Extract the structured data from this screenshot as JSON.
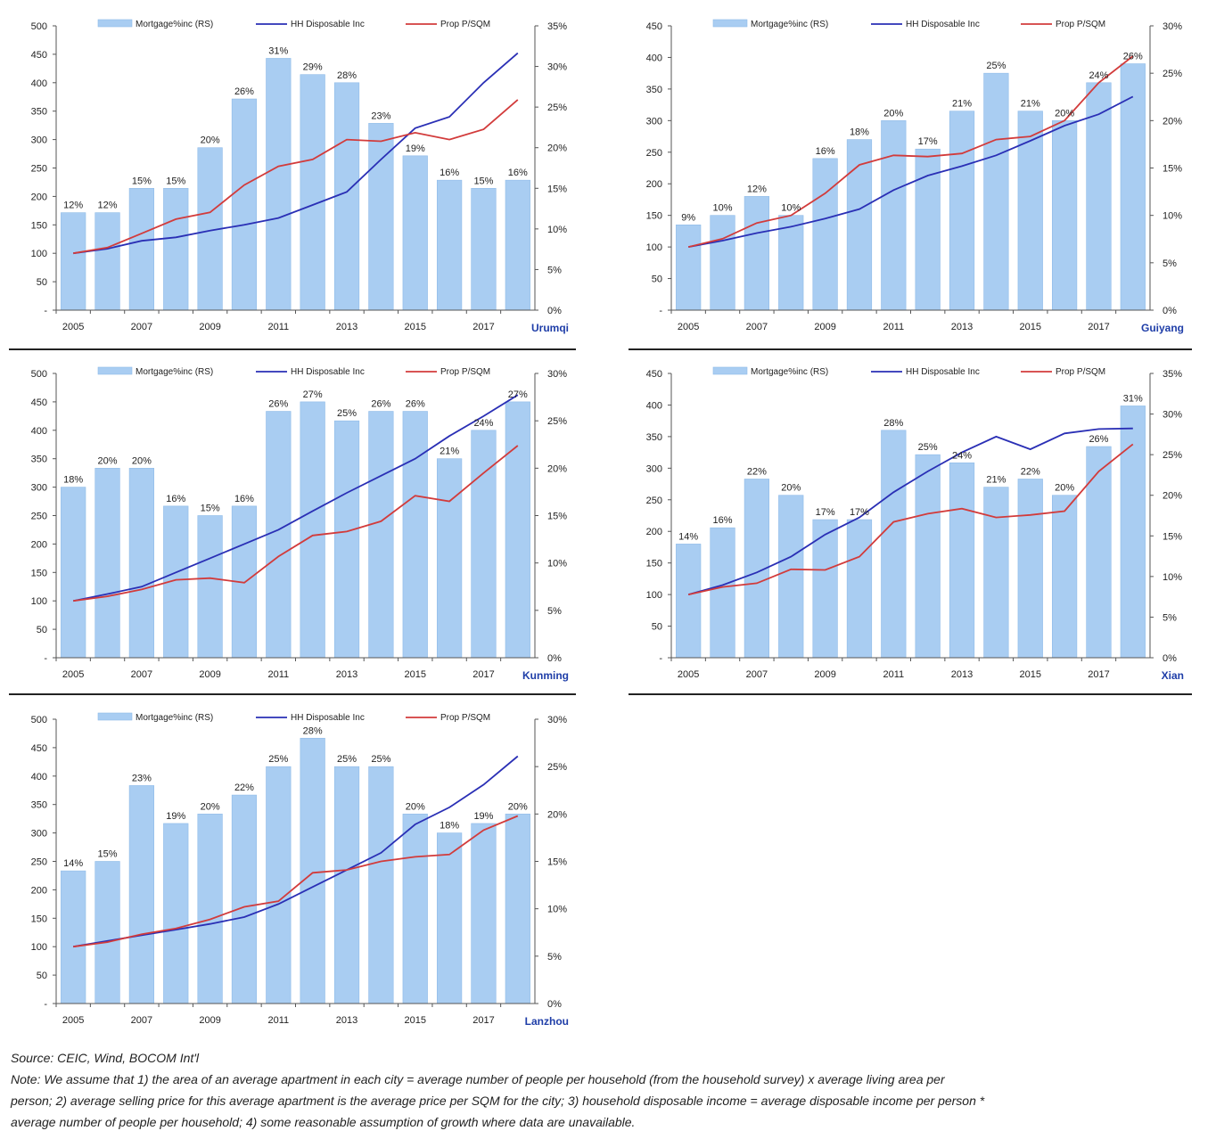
{
  "colors": {
    "bar": "#a9cdf2",
    "bar_edge": "#8fbbe8",
    "hh_line": "#2a2fb5",
    "prop_line": "#d23b3b",
    "city_label": "#1f3ea8"
  },
  "legend": {
    "bar": "Mortgage%inc (RS)",
    "hh": "HH Disposable Inc",
    "prop": "Prop P/SQM"
  },
  "chart_data": [
    {
      "type": "bar",
      "city": "Urumqi",
      "x": [
        2005,
        2006,
        2007,
        2008,
        2009,
        2010,
        2011,
        2012,
        2013,
        2014,
        2015,
        2016,
        2017,
        2018
      ],
      "xticks": [
        "2005",
        "2007",
        "2009",
        "2011",
        "2013",
        "2015",
        "2017"
      ],
      "left_ticks": [
        "500",
        "450",
        "400",
        "350",
        "300",
        "250",
        "200",
        "150",
        "100",
        "50",
        "-"
      ],
      "right_ticks": [
        "35%",
        "30%",
        "25%",
        "20%",
        "15%",
        "10%",
        "5%",
        "0%"
      ],
      "ylim": [
        0,
        500
      ],
      "y2lim": [
        0,
        35
      ],
      "series": [
        {
          "name": "Mortgage%inc (RS)",
          "type": "bar",
          "values": [
            12,
            12,
            15,
            15,
            20,
            26,
            31,
            29,
            28,
            23,
            19,
            16,
            15,
            16
          ],
          "labels": [
            "12%",
            "12%",
            "15%",
            "15%",
            "20%",
            "26%",
            "31%",
            "29%",
            "28%",
            "23%",
            "19%",
            "16%",
            "15%",
            "16%"
          ]
        },
        {
          "name": "HH Disposable Inc",
          "type": "line",
          "values": [
            100,
            108,
            122,
            128,
            140,
            150,
            162,
            185,
            208,
            265,
            320,
            340,
            400,
            452
          ]
        },
        {
          "name": "Prop P/SQM",
          "type": "line",
          "values": [
            100,
            110,
            135,
            160,
            172,
            220,
            253,
            265,
            300,
            297,
            312,
            300,
            318,
            370
          ]
        }
      ]
    },
    {
      "type": "bar",
      "city": "Guiyang",
      "x": [
        2005,
        2006,
        2007,
        2008,
        2009,
        2010,
        2011,
        2012,
        2013,
        2014,
        2015,
        2016,
        2017,
        2018
      ],
      "xticks": [
        "2005",
        "2007",
        "2009",
        "2011",
        "2013",
        "2015",
        "2017"
      ],
      "left_ticks": [
        "450",
        "400",
        "350",
        "300",
        "250",
        "200",
        "150",
        "100",
        "50",
        "-"
      ],
      "right_ticks": [
        "30%",
        "25%",
        "20%",
        "15%",
        "10%",
        "5%",
        "0%"
      ],
      "ylim": [
        0,
        450
      ],
      "y2lim": [
        0,
        30
      ],
      "series": [
        {
          "name": "Mortgage%inc (RS)",
          "type": "bar",
          "values": [
            9,
            10,
            12,
            10,
            16,
            18,
            20,
            17,
            21,
            25,
            21,
            20,
            24,
            26
          ],
          "labels": [
            "9%",
            "10%",
            "12%",
            "10%",
            "16%",
            "18%",
            "20%",
            "17%",
            "21%",
            "25%",
            "21%",
            "20%",
            "24%",
            "26%"
          ]
        },
        {
          "name": "HH Disposable Inc",
          "type": "line",
          "values": [
            100,
            110,
            122,
            132,
            145,
            160,
            190,
            213,
            228,
            245,
            268,
            292,
            310,
            338
          ]
        },
        {
          "name": "Prop P/SQM",
          "type": "line",
          "values": [
            100,
            113,
            138,
            150,
            185,
            230,
            245,
            243,
            248,
            270,
            275,
            300,
            360,
            402
          ]
        }
      ]
    },
    {
      "type": "bar",
      "city": "Kunming",
      "x": [
        2005,
        2006,
        2007,
        2008,
        2009,
        2010,
        2011,
        2012,
        2013,
        2014,
        2015,
        2016,
        2017,
        2018
      ],
      "xticks": [
        "2005",
        "2007",
        "2009",
        "2011",
        "2013",
        "2015",
        "2017"
      ],
      "left_ticks": [
        "500",
        "450",
        "400",
        "350",
        "300",
        "250",
        "200",
        "150",
        "100",
        "50",
        "-"
      ],
      "right_ticks": [
        "30%",
        "25%",
        "20%",
        "15%",
        "10%",
        "5%",
        "0%"
      ],
      "ylim": [
        0,
        500
      ],
      "y2lim": [
        0,
        30
      ],
      "series": [
        {
          "name": "Mortgage%inc (RS)",
          "type": "bar",
          "values": [
            18,
            20,
            20,
            16,
            15,
            16,
            26,
            27,
            25,
            26,
            26,
            21,
            24,
            27
          ],
          "labels": [
            "18%",
            "20%",
            "20%",
            "16%",
            "15%",
            "16%",
            "26%",
            "27%",
            "25%",
            "26%",
            "26%",
            "21%",
            "24%",
            "27%"
          ]
        },
        {
          "name": "HH Disposable Inc",
          "type": "line",
          "values": [
            100,
            112,
            125,
            150,
            175,
            200,
            225,
            258,
            290,
            320,
            350,
            390,
            425,
            462
          ]
        },
        {
          "name": "Prop P/SQM",
          "type": "line",
          "values": [
            100,
            108,
            120,
            137,
            140,
            132,
            178,
            215,
            222,
            240,
            285,
            275,
            325,
            373
          ]
        }
      ]
    },
    {
      "type": "bar",
      "city": "Xian",
      "x": [
        2005,
        2006,
        2007,
        2008,
        2009,
        2010,
        2011,
        2012,
        2013,
        2014,
        2015,
        2016,
        2017,
        2018
      ],
      "xticks": [
        "2005",
        "2007",
        "2009",
        "2011",
        "2013",
        "2015",
        "2017"
      ],
      "left_ticks": [
        "450",
        "400",
        "350",
        "300",
        "250",
        "200",
        "150",
        "100",
        "50",
        "-"
      ],
      "right_ticks": [
        "35%",
        "30%",
        "25%",
        "20%",
        "15%",
        "10%",
        "5%",
        "0%"
      ],
      "ylim": [
        0,
        450
      ],
      "y2lim": [
        0,
        35
      ],
      "series": [
        {
          "name": "Mortgage%inc (RS)",
          "type": "bar",
          "values": [
            14,
            16,
            22,
            20,
            17,
            17,
            28,
            25,
            24,
            21,
            22,
            20,
            26,
            31
          ],
          "labels": [
            "14%",
            "16%",
            "22%",
            "20%",
            "17%",
            "17%",
            "28%",
            "25%",
            "24%",
            "21%",
            "22%",
            "20%",
            "26%",
            "31%"
          ]
        },
        {
          "name": "HH Disposable Inc",
          "type": "line",
          "values": [
            100,
            115,
            135,
            160,
            195,
            222,
            262,
            295,
            325,
            350,
            330,
            355,
            362,
            363
          ]
        },
        {
          "name": "Prop P/SQM",
          "type": "line",
          "values": [
            100,
            112,
            118,
            140,
            139,
            160,
            215,
            228,
            236,
            222,
            226,
            232,
            295,
            338
          ]
        }
      ]
    },
    {
      "type": "bar",
      "city": "Lanzhou",
      "x": [
        2005,
        2006,
        2007,
        2008,
        2009,
        2010,
        2011,
        2012,
        2013,
        2014,
        2015,
        2016,
        2017,
        2018
      ],
      "xticks": [
        "2005",
        "2007",
        "2009",
        "2011",
        "2013",
        "2015",
        "2017"
      ],
      "left_ticks": [
        "500",
        "450",
        "400",
        "350",
        "300",
        "250",
        "200",
        "150",
        "100",
        "50",
        "-"
      ],
      "right_ticks": [
        "30%",
        "25%",
        "20%",
        "15%",
        "10%",
        "5%",
        "0%"
      ],
      "ylim": [
        0,
        500
      ],
      "y2lim": [
        0,
        30
      ],
      "series": [
        {
          "name": "Mortgage%inc (RS)",
          "type": "bar",
          "values": [
            14,
            15,
            23,
            19,
            20,
            22,
            25,
            28,
            25,
            25,
            20,
            18,
            19,
            20
          ],
          "labels": [
            "14%",
            "15%",
            "23%",
            "19%",
            "20%",
            "22%",
            "25%",
            "28%",
            "25%",
            "25%",
            "20%",
            "18%",
            "19%",
            "20%"
          ]
        },
        {
          "name": "HH Disposable Inc",
          "type": "line",
          "values": [
            100,
            110,
            120,
            130,
            140,
            152,
            175,
            205,
            235,
            265,
            315,
            345,
            385,
            435
          ]
        },
        {
          "name": "Prop P/SQM",
          "type": "line",
          "values": [
            100,
            108,
            122,
            132,
            148,
            170,
            180,
            230,
            235,
            250,
            258,
            262,
            305,
            330
          ]
        }
      ]
    }
  ],
  "notes": {
    "source": "Source: CEIC, Wind, BOCOM Int'l",
    "note_line1": "Note: We assume that 1) the area of an average apartment in each city = average number of people per household (from the household survey) x average living area per",
    "note_line2": "person; 2) average selling price for this average apartment is the average price per SQM for the city; 3) household disposable income = average disposable income per person *",
    "note_line3": "average number of people per household; 4) some reasonable assumption of growth where data are unavailable."
  }
}
